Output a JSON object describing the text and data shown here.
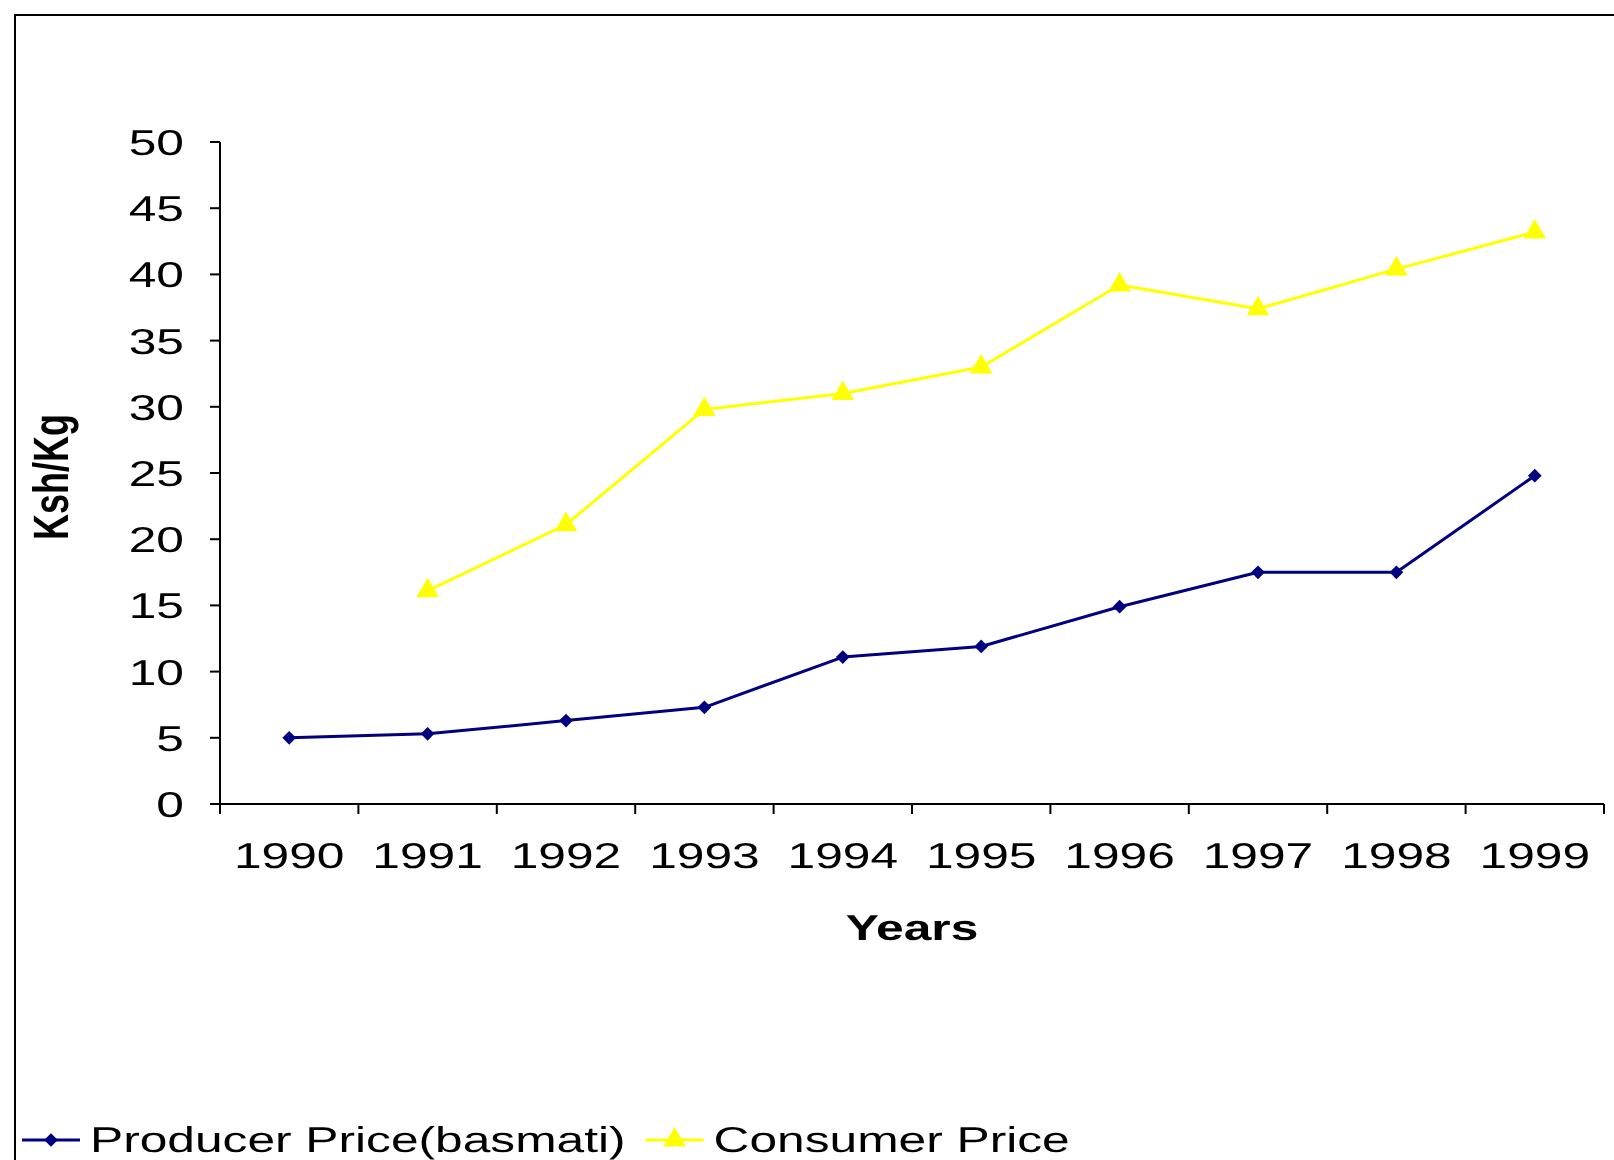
{
  "chart_data": {
    "type": "line",
    "xlabel": "Years",
    "ylabel": "Ksh/Kg",
    "categories": [
      "1990",
      "1991",
      "1992",
      "1993",
      "1994",
      "1995",
      "1996",
      "1997",
      "1998",
      "1999"
    ],
    "series": [
      {
        "name": "Producer Price(basmati)",
        "color": "#000080",
        "marker": "diamond",
        "values": [
          5.0,
          5.3,
          6.3,
          7.3,
          11.1,
          11.9,
          14.9,
          17.5,
          17.5,
          24.8
        ]
      },
      {
        "name": "Consumer Price",
        "color": "#ffff00",
        "marker": "triangle",
        "values": [
          null,
          16.1,
          21.1,
          29.8,
          31.0,
          33.0,
          39.2,
          37.4,
          40.4,
          43.2
        ]
      }
    ],
    "ylim": [
      0,
      50
    ],
    "yticks": [
      0,
      5,
      10,
      15,
      20,
      25,
      30,
      35,
      40,
      45,
      50
    ],
    "legend": "bottom"
  }
}
